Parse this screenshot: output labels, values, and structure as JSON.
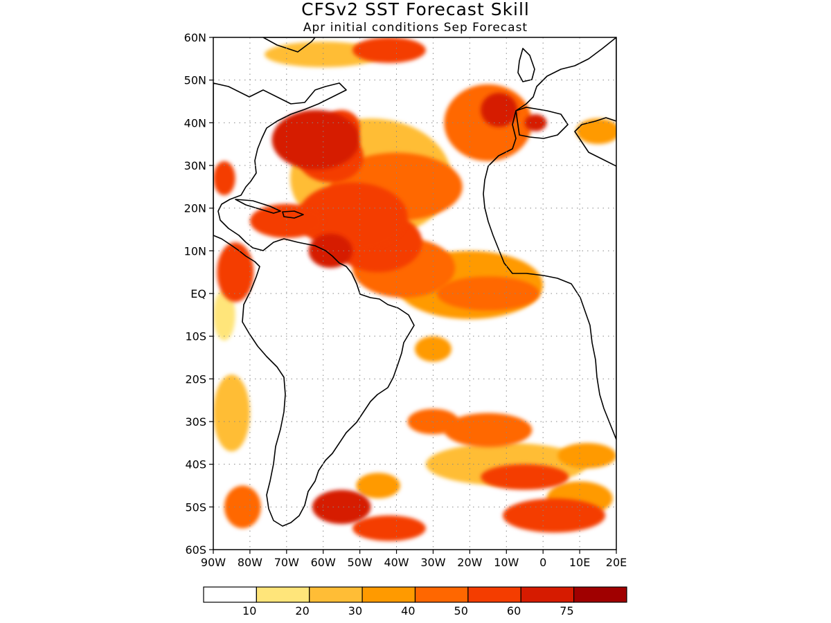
{
  "figure": {
    "title": "CFSv2 SST Forecast Skill",
    "subtitle": "Apr initial conditions  Sep Forecast"
  },
  "map": {
    "lon_range": [
      -90,
      20
    ],
    "lat_range": [
      -60,
      60
    ],
    "lat_ticks": [
      {
        "value": 60,
        "label": "60N"
      },
      {
        "value": 50,
        "label": "50N"
      },
      {
        "value": 40,
        "label": "40N"
      },
      {
        "value": 30,
        "label": "30N"
      },
      {
        "value": 20,
        "label": "20N"
      },
      {
        "value": 10,
        "label": "10N"
      },
      {
        "value": 0,
        "label": "EQ"
      },
      {
        "value": -10,
        "label": "10S"
      },
      {
        "value": -20,
        "label": "20S"
      },
      {
        "value": -30,
        "label": "30S"
      },
      {
        "value": -40,
        "label": "40S"
      },
      {
        "value": -50,
        "label": "50S"
      },
      {
        "value": -60,
        "label": "60S"
      }
    ],
    "lon_ticks": [
      {
        "value": -90,
        "label": "90W"
      },
      {
        "value": -80,
        "label": "80W"
      },
      {
        "value": -70,
        "label": "70W"
      },
      {
        "value": -60,
        "label": "60W"
      },
      {
        "value": -50,
        "label": "50W"
      },
      {
        "value": -40,
        "label": "40W"
      },
      {
        "value": -30,
        "label": "30W"
      },
      {
        "value": -20,
        "label": "20W"
      },
      {
        "value": -10,
        "label": "10W"
      },
      {
        "value": 0,
        "label": "0"
      },
      {
        "value": 10,
        "label": "10E"
      },
      {
        "value": 20,
        "label": "20E"
      }
    ],
    "grid": "dotted",
    "skill_patches": [
      {
        "lon": -47,
        "lat": 27,
        "rx": 22,
        "ry": 14,
        "v": 25
      },
      {
        "lon": -40,
        "lat": 25,
        "rx": 18,
        "ry": 8,
        "v": 45
      },
      {
        "lon": -62,
        "lat": 36,
        "rx": 12,
        "ry": 7,
        "v": 60
      },
      {
        "lon": -58,
        "lat": 32,
        "rx": 9,
        "ry": 6,
        "v": 50
      },
      {
        "lon": -55,
        "lat": 39,
        "rx": 5,
        "ry": 4,
        "v": 55
      },
      {
        "lon": -52,
        "lat": 18,
        "rx": 15,
        "ry": 8,
        "v": 55
      },
      {
        "lon": -45,
        "lat": 12,
        "rx": 12,
        "ry": 7,
        "v": 50
      },
      {
        "lon": -70,
        "lat": 17,
        "rx": 10,
        "ry": 4,
        "v": 55
      },
      {
        "lon": -58,
        "lat": 10,
        "rx": 6,
        "ry": 4,
        "v": 60
      },
      {
        "lon": -38,
        "lat": 6,
        "rx": 14,
        "ry": 7,
        "v": 40
      },
      {
        "lon": -20,
        "lat": 2,
        "rx": 20,
        "ry": 8,
        "v": 30
      },
      {
        "lon": -15,
        "lat": 0,
        "rx": 14,
        "ry": 4,
        "v": 45
      },
      {
        "lon": -15,
        "lat": 40,
        "rx": 12,
        "ry": 9,
        "v": 40
      },
      {
        "lon": -12,
        "lat": 43,
        "rx": 5,
        "ry": 4,
        "v": 60
      },
      {
        "lon": -60,
        "lat": 56,
        "rx": 16,
        "ry": 3,
        "v": 25
      },
      {
        "lon": -42,
        "lat": 57,
        "rx": 10,
        "ry": 3,
        "v": 50
      },
      {
        "lon": -87,
        "lat": 27,
        "rx": 3,
        "ry": 4,
        "v": 55
      },
      {
        "lon": -84,
        "lat": 5,
        "rx": 5,
        "ry": 7,
        "v": 55
      },
      {
        "lon": -87,
        "lat": -5,
        "rx": 3,
        "ry": 6,
        "v": 15
      },
      {
        "lon": -85,
        "lat": -28,
        "rx": 5,
        "ry": 9,
        "v": 20
      },
      {
        "lon": -30,
        "lat": -13,
        "rx": 5,
        "ry": 3,
        "v": 30
      },
      {
        "lon": -30,
        "lat": -30,
        "rx": 7,
        "ry": 3,
        "v": 45
      },
      {
        "lon": -15,
        "lat": -32,
        "rx": 12,
        "ry": 4,
        "v": 40
      },
      {
        "lon": -10,
        "lat": -40,
        "rx": 22,
        "ry": 5,
        "v": 25
      },
      {
        "lon": -5,
        "lat": -43,
        "rx": 12,
        "ry": 3,
        "v": 55
      },
      {
        "lon": 12,
        "lat": -38,
        "rx": 8,
        "ry": 3,
        "v": 30
      },
      {
        "lon": -55,
        "lat": -50,
        "rx": 8,
        "ry": 4,
        "v": 65
      },
      {
        "lon": -42,
        "lat": -55,
        "rx": 10,
        "ry": 3,
        "v": 50
      },
      {
        "lon": -45,
        "lat": -45,
        "rx": 6,
        "ry": 3,
        "v": 35
      },
      {
        "lon": 3,
        "lat": -52,
        "rx": 14,
        "ry": 4,
        "v": 50
      },
      {
        "lon": 10,
        "lat": -48,
        "rx": 9,
        "ry": 4,
        "v": 30
      },
      {
        "lon": -82,
        "lat": -50,
        "rx": 5,
        "ry": 5,
        "v": 40
      },
      {
        "lon": 15,
        "lat": 38,
        "rx": 6,
        "ry": 3,
        "v": 35
      },
      {
        "lon": -2,
        "lat": 40,
        "rx": 3,
        "ry": 2,
        "v": 60
      }
    ]
  },
  "colorbar": {
    "colors": [
      "#ffffff",
      "#ffe57a",
      "#ffbd36",
      "#ff9a00",
      "#ff6700",
      "#f43d00",
      "#d61b00",
      "#a00000"
    ],
    "labels": [
      "10",
      "20",
      "30",
      "40",
      "50",
      "60",
      "75"
    ]
  }
}
